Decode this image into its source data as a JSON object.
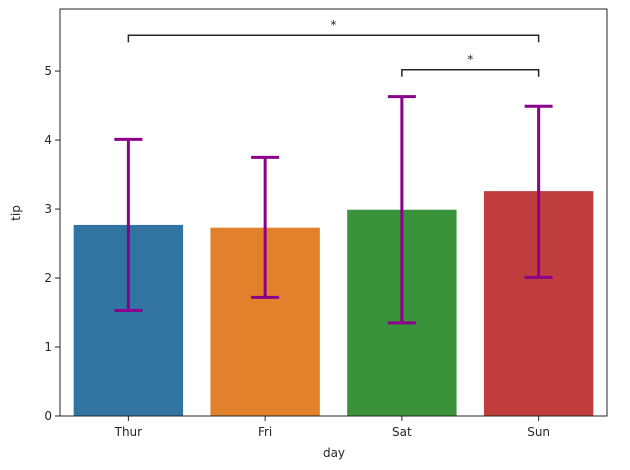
{
  "chart_data": {
    "type": "bar",
    "title": "",
    "xlabel": "day",
    "ylabel": "tip",
    "categories": [
      "Thur",
      "Fri",
      "Sat",
      "Sun"
    ],
    "values": [
      2.77,
      2.73,
      2.99,
      3.26
    ],
    "error_low": [
      1.53,
      1.72,
      1.35,
      2.01
    ],
    "error_high": [
      4.01,
      3.75,
      4.63,
      4.49
    ],
    "bar_colors": [
      "#3274a1",
      "#e1812c",
      "#3a923a",
      "#c03d3e"
    ],
    "errorbar_color": "#8b008b",
    "ylim": [
      0,
      5.9
    ],
    "yticks": [
      0,
      1,
      2,
      3,
      4,
      5
    ],
    "grid": false,
    "annotations": [
      {
        "from": "Sat",
        "to": "Sun",
        "y": 5.02,
        "text": "*"
      },
      {
        "from": "Thur",
        "to": "Sun",
        "y": 5.52,
        "text": "*"
      }
    ]
  }
}
